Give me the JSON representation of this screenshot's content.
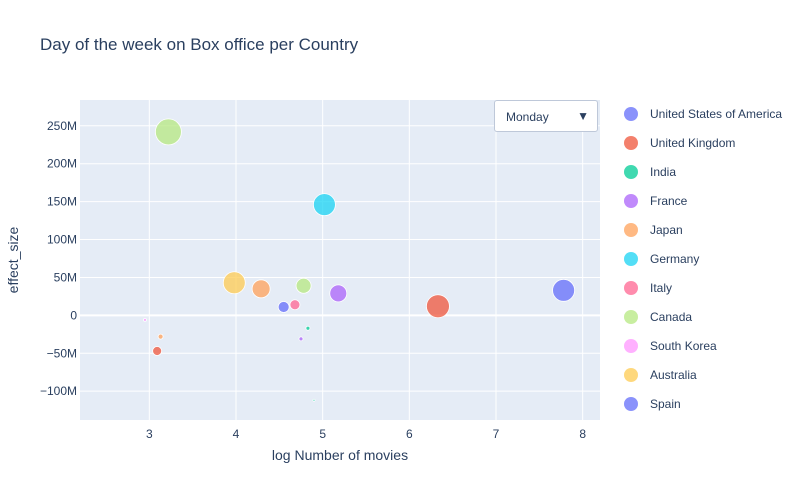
{
  "title": "Day of the week on Box office per Country",
  "dropdown": {
    "selected": "Monday",
    "arrow": "▼"
  },
  "colors": {
    "plot_bg": "#e5ecf6",
    "grid": "#ffffff"
  },
  "chart_data": {
    "type": "scatter",
    "title": "Day of the week on Box office per Country",
    "xlabel": "log Number of movies",
    "ylabel": "effect_size",
    "xlim": [
      2.2,
      8.2
    ],
    "ylim": [
      -138000000,
      284000000
    ],
    "xticks": [
      3,
      4,
      5,
      6,
      7,
      8
    ],
    "xtick_labels": [
      "3",
      "4",
      "5",
      "6",
      "7",
      "8"
    ],
    "yticks": [
      -100000000,
      -50000000,
      0,
      50000000,
      100000000,
      150000000,
      200000000,
      250000000
    ],
    "ytick_labels": [
      "−100M",
      "−50M",
      "0",
      "50M",
      "100M",
      "150M",
      "200M",
      "250M"
    ],
    "grid": true,
    "legend_position": "right",
    "series": [
      {
        "name": "United States of America",
        "color": "#636efa",
        "points": [
          {
            "x": 7.78,
            "y": 33000000,
            "size": 11
          }
        ]
      },
      {
        "name": "United Kingdom",
        "color": "#ef553b",
        "points": [
          {
            "x": 6.33,
            "y": 12000000,
            "size": 11.5
          },
          {
            "x": 3.09,
            "y": -47000000,
            "size": 4.5
          }
        ]
      },
      {
        "name": "India",
        "color": "#00cc96",
        "points": [
          {
            "x": 4.83,
            "y": -17000000,
            "size": 2
          },
          {
            "x": 4.9,
            "y": -112000000,
            "size": 1
          }
        ]
      },
      {
        "name": "France",
        "color": "#ab63fa",
        "points": [
          {
            "x": 5.18,
            "y": 29000000,
            "size": 8.5
          },
          {
            "x": 4.75,
            "y": -31000000,
            "size": 2
          }
        ]
      },
      {
        "name": "Japan",
        "color": "#ffa15a",
        "points": [
          {
            "x": 4.29,
            "y": 35000000,
            "size": 9
          },
          {
            "x": 3.13,
            "y": -28000000,
            "size": 2.5
          }
        ]
      },
      {
        "name": "Germany",
        "color": "#19d3f3",
        "points": [
          {
            "x": 5.02,
            "y": 146000000,
            "size": 11
          }
        ]
      },
      {
        "name": "Italy",
        "color": "#ff6692",
        "points": [
          {
            "x": 4.68,
            "y": 14000000,
            "size": 5
          }
        ]
      },
      {
        "name": "Canada",
        "color": "#b6e880",
        "points": [
          {
            "x": 3.22,
            "y": 242000000,
            "size": 13
          },
          {
            "x": 4.78,
            "y": 39000000,
            "size": 7.5
          }
        ]
      },
      {
        "name": "South Korea",
        "color": "#ff97ff",
        "points": [
          {
            "x": 2.95,
            "y": -6000000,
            "size": 1.5
          }
        ]
      },
      {
        "name": "Australia",
        "color": "#fecb52",
        "points": [
          {
            "x": 3.98,
            "y": 43000000,
            "size": 11
          }
        ]
      },
      {
        "name": "Spain",
        "color": "#636efa",
        "points": [
          {
            "x": 4.55,
            "y": 11000000,
            "size": 5.5
          }
        ]
      }
    ]
  }
}
